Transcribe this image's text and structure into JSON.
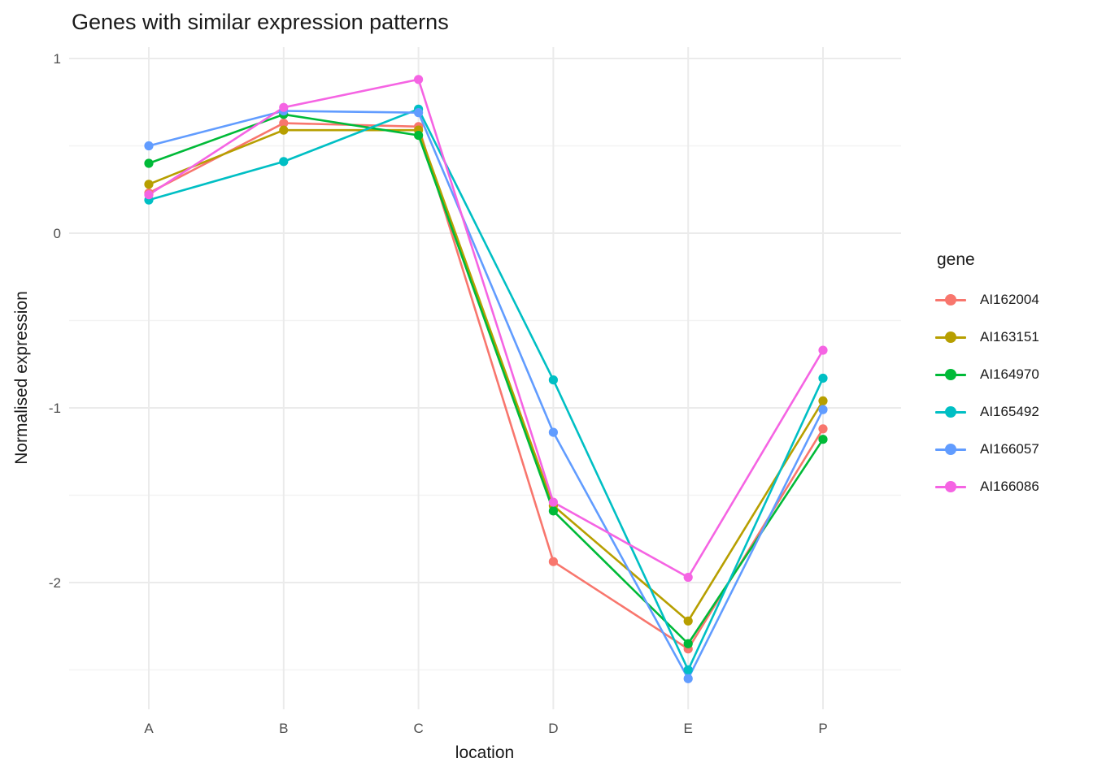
{
  "title": "Genes with similar expression patterns",
  "axes": {
    "x_title": "location",
    "y_title": "Normalised expression",
    "x_tick_labels": [
      "A",
      "B",
      "C",
      "D",
      "E",
      "P"
    ],
    "y_tick_labels": [
      "1",
      "0",
      "-1",
      "-2"
    ]
  },
  "legend": {
    "title": "gene",
    "items": [
      {
        "label": "AI162004",
        "color": "#F8766D"
      },
      {
        "label": "AI163151",
        "color": "#B79F00"
      },
      {
        "label": "AI164970",
        "color": "#00BA38"
      },
      {
        "label": "AI165492",
        "color": "#00BFC4"
      },
      {
        "label": "AI166057",
        "color": "#619CFF"
      },
      {
        "label": "AI166086",
        "color": "#F564E3"
      }
    ]
  },
  "chart_data": {
    "type": "line",
    "title": "Genes with similar expression patterns",
    "xlabel": "location",
    "ylabel": "Normalised expression",
    "categories": [
      "A",
      "B",
      "C",
      "D",
      "E",
      "P"
    ],
    "series": [
      {
        "name": "AI162004",
        "color": "#F8766D",
        "values": [
          0.23,
          0.63,
          0.61,
          -1.88,
          -2.38,
          -1.12
        ]
      },
      {
        "name": "AI163151",
        "color": "#B79F00",
        "values": [
          0.28,
          0.59,
          0.59,
          -1.56,
          -2.22,
          -0.96
        ]
      },
      {
        "name": "AI164970",
        "color": "#00BA38",
        "values": [
          0.4,
          0.68,
          0.56,
          -1.59,
          -2.35,
          -1.18
        ]
      },
      {
        "name": "AI165492",
        "color": "#00BFC4",
        "values": [
          0.19,
          0.41,
          0.71,
          -0.84,
          -2.5,
          -0.83
        ]
      },
      {
        "name": "AI166057",
        "color": "#619CFF",
        "values": [
          0.5,
          0.7,
          0.69,
          -1.14,
          -2.55,
          -1.01
        ]
      },
      {
        "name": "AI166086",
        "color": "#F564E3",
        "values": [
          0.22,
          0.72,
          0.88,
          -1.54,
          -1.97,
          -0.67
        ]
      }
    ],
    "ylim": [
      -2.72,
      1.06
    ],
    "y_major_ticks": [
      1,
      0,
      -1,
      -2
    ],
    "y_minor_ticks": [
      0.5,
      -0.5,
      -1.5,
      -2.5
    ],
    "grid": true,
    "legend_position": "right",
    "marker": "circle"
  },
  "style": {
    "grid_major_color": "#EBEBEB",
    "grid_minor_color": "#F3F3F3",
    "tick_label_color": "#4D4D4D",
    "background_color": "#FFFFFF"
  }
}
